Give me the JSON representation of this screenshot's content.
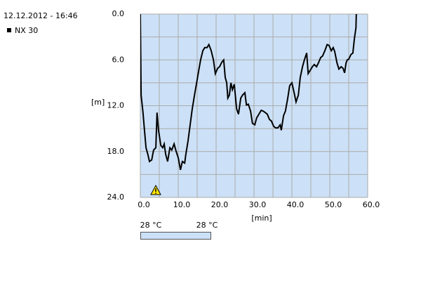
{
  "chart_data": {
    "type": "line",
    "title": "12.12.2012 - 16:46",
    "xlabel": "[min]",
    "ylabel": "[m]",
    "x": [
      0,
      0.2,
      0.7,
      1.1,
      1.5,
      2,
      2.4,
      3,
      3.5,
      4.1,
      4.4,
      4.8,
      5.4,
      5.9,
      6.3,
      6.7,
      7.2,
      7.8,
      8.3,
      8.9,
      9.4,
      10,
      10.6,
      11.1,
      11.7,
      12,
      12.6,
      13.1,
      13.7,
      14.3,
      14.8,
      15.4,
      15.9,
      16.5,
      17,
      17.6,
      18.1,
      18.7,
      19.3,
      19.8,
      20.4,
      20.9,
      21.5,
      22,
      22.4,
      22.8,
      23.1,
      23.5,
      23.9,
      24.3,
      24.8,
      25.4,
      25.9,
      26.5,
      27,
      27.6,
      28,
      28.5,
      29.1,
      29.6,
      30.2,
      30.7,
      31.3,
      31.9,
      32.4,
      33,
      33.5,
      34.1,
      34.6,
      35.2,
      35.7,
      36.3,
      36.9,
      37.2,
      37.8,
      38.3,
      38.9,
      39.4,
      40,
      40.6,
      41.1,
      41.7,
      42.2,
      42.8,
      43.3,
      43.9,
      44.3,
      44.8,
      45.4,
      45.9,
      46.5,
      47,
      47.6,
      48.1,
      48.7,
      49.3,
      49.8,
      50.4,
      50.9,
      51.3,
      51.9,
      52.4,
      53,
      53.5,
      53.9,
      54.3,
      54.6,
      55,
      55.6,
      56.1,
      56.5,
      56.9,
      57
    ],
    "series": [
      {
        "name": "NX 30",
        "color": "#000000",
        "values": [
          0,
          10.6,
          12.9,
          15.2,
          17.5,
          18.4,
          19.3,
          19.1,
          17.8,
          17.5,
          12.9,
          15.2,
          17.2,
          17.5,
          17,
          18.4,
          19.3,
          17.5,
          17.8,
          17,
          17.9,
          18.8,
          20.4,
          19.3,
          19.5,
          18.4,
          16.6,
          14.7,
          12.4,
          10.6,
          9.2,
          7.4,
          6,
          4.8,
          4.4,
          4.4,
          4,
          4.8,
          6,
          7.8,
          7.1,
          6.9,
          6.3,
          6,
          8.3,
          9,
          11,
          10.6,
          9,
          9.9,
          9.2,
          12.4,
          13.1,
          11,
          10.6,
          10.3,
          11.9,
          11.8,
          12.7,
          14.3,
          14.5,
          13.6,
          13.1,
          12.6,
          12.7,
          12.9,
          13.1,
          13.8,
          14,
          14.7,
          14.9,
          14.9,
          14.5,
          15.2,
          13.3,
          12.7,
          11,
          9.4,
          9,
          10.3,
          11.5,
          10.6,
          8.3,
          6.9,
          6,
          5.1,
          7.8,
          7.4,
          6.9,
          6.6,
          6.9,
          6.4,
          5.7,
          5.5,
          4.8,
          4,
          4.1,
          4.8,
          4.4,
          4.9,
          6.4,
          7.2,
          6.9,
          7.1,
          7.7,
          6.4,
          6,
          5.9,
          5.3,
          5.1,
          3.2,
          1.8,
          0
        ]
      }
    ],
    "xlim": [
      0,
      60
    ],
    "ylim": [
      0,
      24
    ],
    "y_inverted": true,
    "xticks": [
      {
        "value": 0,
        "label": "0.0"
      },
      {
        "value": 10,
        "label": "10.0"
      },
      {
        "value": 20,
        "label": "20.0"
      },
      {
        "value": 30,
        "label": "30.0"
      },
      {
        "value": 40,
        "label": "40.0"
      },
      {
        "value": 50,
        "label": "50.0"
      },
      {
        "value": 60,
        "label": "60.0"
      }
    ],
    "yticks": [
      {
        "value": 0,
        "label": "0.0"
      },
      {
        "value": 6,
        "label": "6.0"
      },
      {
        "value": 12,
        "label": "12.0"
      },
      {
        "value": 18,
        "label": "18.0"
      },
      {
        "value": 24,
        "label": "24.0"
      }
    ],
    "x_minor_grid": [
      5,
      15,
      25,
      35,
      45,
      55
    ],
    "y_minor_grid": [
      3,
      9,
      15,
      21
    ],
    "grid": true,
    "plot_background": "#cce1f7",
    "temperature_labels": [
      "28 °C",
      "28 °C"
    ]
  }
}
